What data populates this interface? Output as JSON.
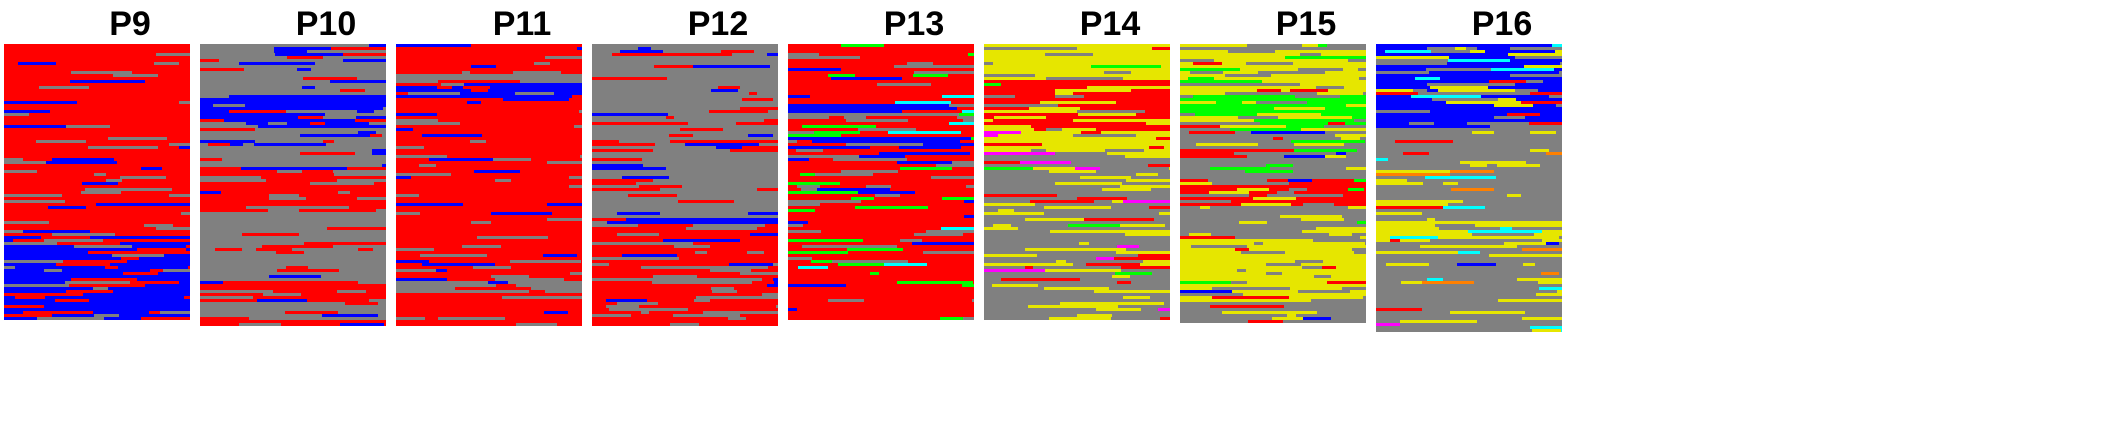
{
  "chart_data": [
    {
      "type": "heatmap",
      "title": "P9",
      "height_rows": 92,
      "dominant": [
        "red",
        "grey",
        "blue"
      ],
      "seed": 9
    },
    {
      "type": "heatmap",
      "title": "P10",
      "height_rows": 94,
      "dominant": [
        "grey",
        "red",
        "blue"
      ],
      "seed": 10
    },
    {
      "type": "heatmap",
      "title": "P11",
      "height_rows": 94,
      "dominant": [
        "red",
        "grey",
        "blue"
      ],
      "seed": 11
    },
    {
      "type": "heatmap",
      "title": "P12",
      "height_rows": 94,
      "dominant": [
        "grey",
        "red",
        "blue"
      ],
      "seed": 12
    },
    {
      "type": "heatmap",
      "title": "P13",
      "height_rows": 92,
      "dominant": [
        "red",
        "grey",
        "green",
        "blue",
        "cyan"
      ],
      "seed": 13
    },
    {
      "type": "heatmap",
      "title": "P14",
      "height_rows": 92,
      "dominant": [
        "yellow",
        "grey",
        "red",
        "green",
        "magenta"
      ],
      "seed": 14
    },
    {
      "type": "heatmap",
      "title": "P15",
      "height_rows": 93,
      "dominant": [
        "grey",
        "yellow",
        "red",
        "green",
        "blue"
      ],
      "seed": 15
    },
    {
      "type": "heatmap",
      "title": "P16",
      "height_rows": 96,
      "dominant": [
        "grey",
        "yellow",
        "cyan",
        "red",
        "blue",
        "orange",
        "magenta"
      ],
      "seed": 16
    }
  ],
  "colors": {
    "red": "#ff0000",
    "grey": "#808080",
    "blue": "#0000ff",
    "green": "#00ff00",
    "cyan": "#00ffff",
    "yellow": "#e6e600",
    "magenta": "#ff00ff",
    "orange": "#ff8000"
  }
}
